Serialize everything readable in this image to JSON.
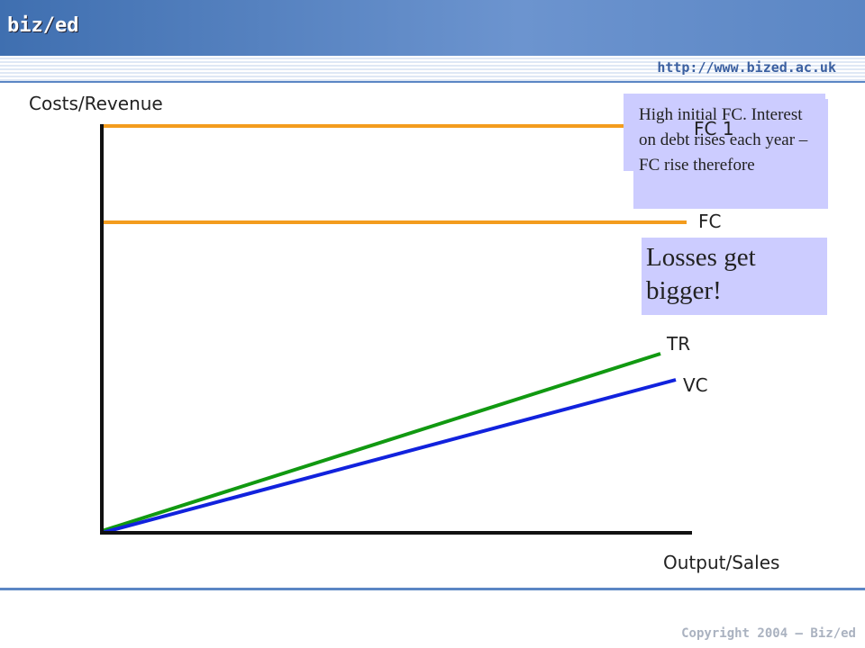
{
  "header": {
    "logo": "biz/ed",
    "url": "http://www.bized.ac.uk"
  },
  "diagram": {
    "y_axis_label": "Costs/Revenue",
    "x_axis_label": "Output/Sales",
    "lines": [
      {
        "label": "FC 1"
      },
      {
        "label": "FC"
      },
      {
        "label": "TR"
      },
      {
        "label": "VC"
      }
    ],
    "notes": [
      "High initial FC. Interest on debt rises each year – FC rise therefore",
      "Losses get bigger!"
    ]
  },
  "footer": {
    "copyright": "Copyright 2004 – Biz/ed"
  }
}
